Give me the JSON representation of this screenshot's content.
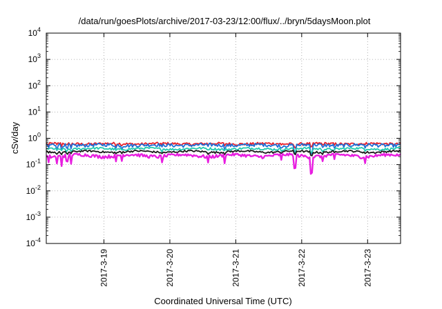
{
  "chart_data": {
    "type": "line",
    "title": "/data/run/goesPlots/archive/2017-03-23/12:00/flux/../bryn/5daysMoon.plot",
    "xlabel": "Coordinated Universal Time (UTC)",
    "ylabel": "cSv/day",
    "yscale": "log",
    "ylim": [
      0.0001,
      10000
    ],
    "xlim": [
      "2017-03-18 03:00",
      "2017-03-23 12:00"
    ],
    "x_ticks": [
      "2017-3-19",
      "2017-3-20",
      "2017-3-21",
      "2017-3-22",
      "2017-3-23"
    ],
    "y_ticks": [
      {
        "base": "10",
        "exp": "4"
      },
      {
        "base": "10",
        "exp": "3"
      },
      {
        "base": "10",
        "exp": "2"
      },
      {
        "base": "10",
        "exp": "1"
      },
      {
        "base": "10",
        "exp": "0"
      },
      {
        "base": "10",
        "exp": "-1"
      },
      {
        "base": "10",
        "exp": "-2"
      },
      {
        "base": "10",
        "exp": "-3"
      },
      {
        "base": "10",
        "exp": "-4"
      }
    ],
    "grid": true,
    "legend": "none",
    "series": [
      {
        "color": "#e8202a",
        "base": 0.62,
        "jitter": 0.07
      },
      {
        "color": "#1f6fd6",
        "base": 0.55,
        "jitter": 0.08
      },
      {
        "color": "#22c9b0",
        "base": 0.4,
        "jitter": 0.04
      },
      {
        "color": "#1a1a1a",
        "base": 0.31,
        "jitter": 0.025
      },
      {
        "color": "#e81ee0",
        "base": 0.22,
        "jitter": 0.03
      }
    ],
    "dips": [
      {
        "x": "2017-03-18 04:00",
        "factor": 0.55
      },
      {
        "x": "2017-03-18 07:00",
        "factor": 0.5
      },
      {
        "x": "2017-03-18 08:30",
        "factor": 0.45
      },
      {
        "x": "2017-03-18 10:30",
        "factor": 0.55
      },
      {
        "x": "2017-03-18 12:00",
        "factor": 0.5
      },
      {
        "x": "2017-03-19 04:30",
        "factor": 0.55
      },
      {
        "x": "2017-03-19 06:30",
        "factor": 0.6
      },
      {
        "x": "2017-03-19 21:00",
        "factor": 0.55
      },
      {
        "x": "2017-03-20 14:00",
        "factor": 0.6
      },
      {
        "x": "2017-03-20 20:00",
        "factor": 0.55
      },
      {
        "x": "2017-03-21 16:30",
        "factor": 0.6
      },
      {
        "x": "2017-03-21 21:30",
        "factor": 0.3
      },
      {
        "x": "2017-03-22 03:30",
        "factor": 0.25
      },
      {
        "x": "2017-03-22 07:30",
        "factor": 0.55
      },
      {
        "x": "2017-03-22 12:00",
        "factor": 0.6
      },
      {
        "x": "2017-03-22 23:00",
        "factor": 0.6
      }
    ]
  }
}
